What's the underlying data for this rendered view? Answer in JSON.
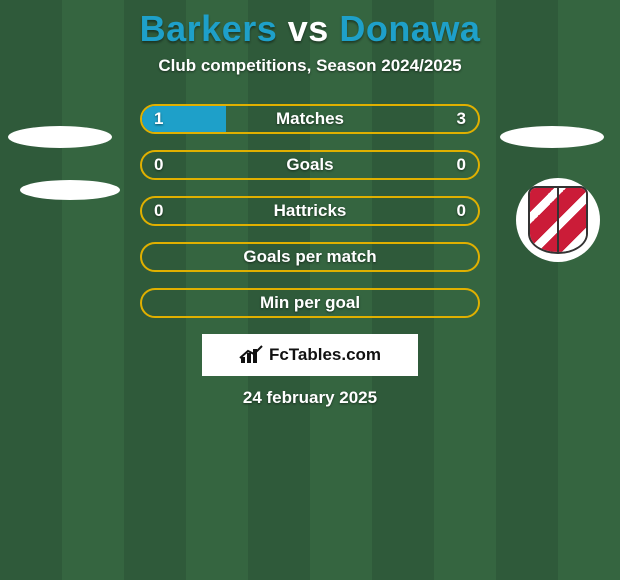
{
  "title": {
    "prefix": "Barkers",
    "vs": "vs",
    "suffix": "Donawa",
    "prefix_color": "#1ea0c9",
    "vs_color": "#ffffff",
    "suffix_color": "#1ea0c9"
  },
  "subtitle": "Club competitions, Season 2024/2025",
  "border_color": "#e0b000",
  "fill_color": "#1ea0c9",
  "background_stripe_a": "#2f5a3a",
  "background_stripe_b": "#356540",
  "rows": [
    {
      "label": "Matches",
      "left": "1",
      "right": "3",
      "fill_pct": 25,
      "show_values": true
    },
    {
      "label": "Goals",
      "left": "0",
      "right": "0",
      "fill_pct": 0,
      "show_values": true
    },
    {
      "label": "Hattricks",
      "left": "0",
      "right": "0",
      "fill_pct": 0,
      "show_values": true
    },
    {
      "label": "Goals per match",
      "left": "",
      "right": "",
      "fill_pct": 0,
      "show_values": false
    },
    {
      "label": "Min per goal",
      "left": "",
      "right": "",
      "fill_pct": 0,
      "show_values": false
    }
  ],
  "brand": "FcTables.com",
  "date": "24 february 2025",
  "badge": {
    "primary_color": "#c8102e",
    "outline_color": "#333333",
    "bg_color": "#ffffff"
  },
  "row_style": {
    "height": 30,
    "border_radius": 16,
    "border_width": 2,
    "font_size": 17,
    "font_weight": 800
  }
}
